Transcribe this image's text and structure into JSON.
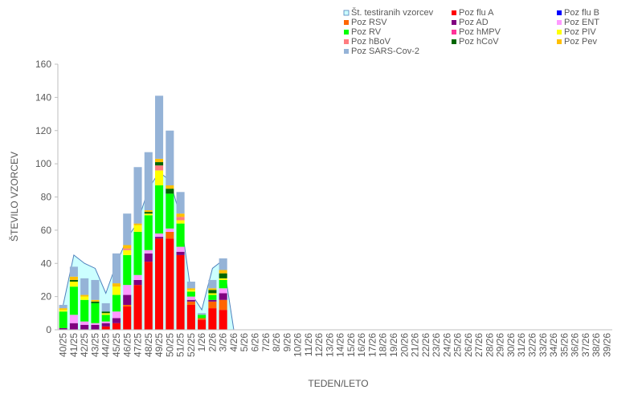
{
  "chart_data": {
    "type": "bar",
    "stacked": true,
    "y_label": "ŠTEVILO VZORCEV",
    "x_label": "TEDEN/LETO",
    "categories": [
      "40/25",
      "41/25",
      "42/25",
      "43/25",
      "44/25",
      "45/25",
      "46/25",
      "47/25",
      "48/25",
      "49/25",
      "50/25",
      "51/25",
      "52/25",
      "1/26",
      "2/26",
      "3/26",
      "4/26",
      "5/26",
      "6/26",
      "7/26",
      "8/26",
      "9/26",
      "10/26",
      "11/26",
      "12/26",
      "13/26",
      "14/26",
      "15/26",
      "16/26",
      "17/26",
      "18/26",
      "19/26",
      "20/26",
      "21/26",
      "22/26",
      "23/26",
      "24/26",
      "25/26",
      "26/26",
      "27/26",
      "28/26",
      "29/26",
      "30/26",
      "31/26",
      "32/26",
      "33/26",
      "34/26",
      "35/26",
      "36/26",
      "37/26",
      "38/26",
      "39/26"
    ],
    "ylim": [
      0,
      160
    ],
    "yticks": [
      0,
      20,
      40,
      60,
      80,
      100,
      120,
      140,
      160
    ],
    "grid": false,
    "legend": "top",
    "area": {
      "name": "Št. testiranih vzorcev",
      "color": "#ccffff",
      "line_color": "#4f81bd",
      "values": [
        15,
        45,
        40,
        37,
        22,
        40,
        55,
        65,
        85,
        95,
        90,
        68,
        22,
        12,
        37,
        42,
        0,
        null,
        null,
        null,
        null,
        null,
        null,
        null,
        null,
        null,
        null,
        null,
        null,
        null,
        null,
        null,
        null,
        null,
        null,
        null,
        null,
        null,
        null,
        null,
        null,
        null,
        null,
        null,
        null,
        null,
        null,
        null,
        null,
        null,
        null,
        null
      ]
    },
    "series": [
      {
        "name": "Poz flu A",
        "color": "#ff0000",
        "values": [
          0,
          0,
          0,
          0,
          2,
          4,
          14,
          27,
          41,
          55,
          55,
          45,
          15,
          6,
          13,
          12,
          null,
          null,
          null,
          null,
          null,
          null,
          null,
          null,
          null,
          null,
          null,
          null,
          null,
          null,
          null,
          null,
          null,
          null,
          null,
          null,
          null,
          null,
          null,
          null,
          null,
          null,
          null,
          null,
          null,
          null,
          null,
          null,
          null,
          null,
          null,
          null
        ]
      },
      {
        "name": "Poz flu B",
        "color": "#0000ff",
        "values": [
          0,
          0,
          0,
          0,
          0,
          0,
          0,
          0,
          0,
          0,
          0,
          0,
          0,
          0,
          0,
          0,
          null,
          null,
          null,
          null,
          null,
          null,
          null,
          null,
          null,
          null,
          null,
          null,
          null,
          null,
          null,
          null,
          null,
          null,
          null,
          null,
          null,
          null,
          null,
          null,
          null,
          null,
          null,
          null,
          null,
          null,
          null,
          null,
          null,
          null,
          null,
          null
        ]
      },
      {
        "name": "Poz RSV",
        "color": "#ff6600",
        "values": [
          0,
          0,
          0,
          0,
          0,
          0,
          1,
          0,
          0,
          0,
          4,
          0,
          2,
          1,
          4,
          6,
          null,
          null,
          null,
          null,
          null,
          null,
          null,
          null,
          null,
          null,
          null,
          null,
          null,
          null,
          null,
          null,
          null,
          null,
          null,
          null,
          null,
          null,
          null,
          null,
          null,
          null,
          null,
          null,
          null,
          null,
          null,
          null,
          null,
          null,
          null,
          null
        ]
      },
      {
        "name": "Poz AD",
        "color": "#800080",
        "values": [
          1,
          4,
          3,
          3,
          2,
          3,
          6,
          3,
          5,
          1,
          0,
          2,
          1,
          0,
          1,
          4,
          null,
          null,
          null,
          null,
          null,
          null,
          null,
          null,
          null,
          null,
          null,
          null,
          null,
          null,
          null,
          null,
          null,
          null,
          null,
          null,
          null,
          null,
          null,
          null,
          null,
          null,
          null,
          null,
          null,
          null,
          null,
          null,
          null,
          null,
          null,
          null
        ]
      },
      {
        "name": "Poz ENT",
        "color": "#ff99ff",
        "values": [
          0,
          5,
          2,
          1,
          1,
          4,
          6,
          3,
          2,
          2,
          2,
          3,
          2,
          0,
          0,
          3,
          null,
          null,
          null,
          null,
          null,
          null,
          null,
          null,
          null,
          null,
          null,
          null,
          null,
          null,
          null,
          null,
          null,
          null,
          null,
          null,
          null,
          null,
          null,
          null,
          null,
          null,
          null,
          null,
          null,
          null,
          null,
          null,
          null,
          null,
          null,
          null
        ]
      },
      {
        "name": "Poz RV",
        "color": "#00ff00",
        "values": [
          10,
          17,
          13,
          12,
          4,
          10,
          18,
          26,
          21,
          29,
          21,
          14,
          3,
          2,
          3,
          5,
          null,
          null,
          null,
          null,
          null,
          null,
          null,
          null,
          null,
          null,
          null,
          null,
          null,
          null,
          null,
          null,
          null,
          null,
          null,
          null,
          null,
          null,
          null,
          null,
          null,
          null,
          null,
          null,
          null,
          null,
          null,
          null,
          null,
          null,
          null,
          null
        ]
      },
      {
        "name": "Poz hMPV",
        "color": "#ff3399",
        "values": [
          0,
          0,
          0,
          0,
          0,
          0,
          0,
          0,
          0,
          0,
          0,
          0,
          0,
          0,
          0,
          0,
          null,
          null,
          null,
          null,
          null,
          null,
          null,
          null,
          null,
          null,
          null,
          null,
          null,
          null,
          null,
          null,
          null,
          null,
          null,
          null,
          null,
          null,
          null,
          null,
          null,
          null,
          null,
          null,
          null,
          null,
          null,
          null,
          null,
          null,
          null,
          null
        ]
      },
      {
        "name": "Poz PIV",
        "color": "#ffff00",
        "values": [
          1,
          3,
          2,
          0,
          1,
          5,
          3,
          4,
          1,
          9,
          0,
          2,
          1,
          0,
          1,
          1,
          null,
          null,
          null,
          null,
          null,
          null,
          null,
          null,
          null,
          null,
          null,
          null,
          null,
          null,
          null,
          null,
          null,
          null,
          null,
          null,
          null,
          null,
          null,
          null,
          null,
          null,
          null,
          null,
          null,
          null,
          null,
          null,
          null,
          null,
          null,
          null
        ]
      },
      {
        "name": "Poz hBoV",
        "color": "#ff7c80",
        "values": [
          0,
          0,
          0,
          0,
          0,
          0,
          1,
          0,
          0,
          3,
          0,
          2,
          0,
          0,
          0,
          0,
          null,
          null,
          null,
          null,
          null,
          null,
          null,
          null,
          null,
          null,
          null,
          null,
          null,
          null,
          null,
          null,
          null,
          null,
          null,
          null,
          null,
          null,
          null,
          null,
          null,
          null,
          null,
          null,
          null,
          null,
          null,
          null,
          null,
          null,
          null,
          null
        ]
      },
      {
        "name": "Poz hCoV",
        "color": "#006600",
        "values": [
          0,
          1,
          0,
          1,
          1,
          0,
          0,
          0,
          1,
          2,
          3,
          0,
          0,
          0,
          2,
          3,
          null,
          null,
          null,
          null,
          null,
          null,
          null,
          null,
          null,
          null,
          null,
          null,
          null,
          null,
          null,
          null,
          null,
          null,
          null,
          null,
          null,
          null,
          null,
          null,
          null,
          null,
          null,
          null,
          null,
          null,
          null,
          null,
          null,
          null,
          null,
          null
        ]
      },
      {
        "name": "Poz Pev",
        "color": "#ffc000",
        "values": [
          1,
          2,
          1,
          1,
          0,
          2,
          2,
          1,
          1,
          2,
          2,
          2,
          1,
          0,
          1,
          2,
          null,
          null,
          null,
          null,
          null,
          null,
          null,
          null,
          null,
          null,
          null,
          null,
          null,
          null,
          null,
          null,
          null,
          null,
          null,
          null,
          null,
          null,
          null,
          null,
          null,
          null,
          null,
          null,
          null,
          null,
          null,
          null,
          null,
          null,
          null,
          null
        ]
      },
      {
        "name": "Poz SARS-Cov-2",
        "color": "#95b3d7",
        "values": [
          2,
          6,
          10,
          12,
          5,
          18,
          19,
          34,
          35,
          38,
          33,
          13,
          4,
          1,
          5,
          7,
          null,
          null,
          null,
          null,
          null,
          null,
          null,
          null,
          null,
          null,
          null,
          null,
          null,
          null,
          null,
          null,
          null,
          null,
          null,
          null,
          null,
          null,
          null,
          null,
          null,
          null,
          null,
          null,
          null,
          null,
          null,
          null,
          null,
          null,
          null,
          null
        ]
      }
    ]
  }
}
